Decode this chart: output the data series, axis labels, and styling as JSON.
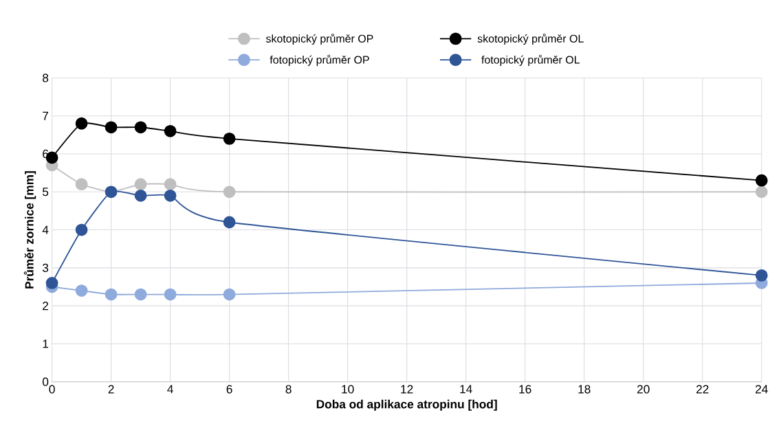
{
  "chart_data": {
    "type": "line",
    "xlabel": "Doba od aplikace atropinu [hod]",
    "ylabel": "Průměr zornice [mm]",
    "x": [
      0,
      1,
      2,
      3,
      4,
      6,
      24
    ],
    "series": [
      {
        "name": "skotopický průměr OP",
        "color": "#bfbfbf",
        "values": [
          5.7,
          5.2,
          5.0,
          5.2,
          5.2,
          5.0,
          5.0
        ]
      },
      {
        "name": "skotopický průměr OL",
        "color": "#000000",
        "values": [
          5.9,
          6.8,
          6.7,
          6.7,
          6.6,
          6.4,
          5.3
        ]
      },
      {
        "name": "fotopický průměr OP",
        "color": "#8faadc",
        "values": [
          2.5,
          2.4,
          2.3,
          2.3,
          2.3,
          2.3,
          2.6
        ]
      },
      {
        "name": "fotopický průměr OL",
        "color": "#2f5597",
        "values": [
          2.6,
          4.0,
          5.0,
          4.9,
          4.9,
          4.2,
          2.8
        ]
      }
    ],
    "xlim": [
      0,
      24
    ],
    "xticks": [
      0,
      2,
      4,
      6,
      8,
      10,
      12,
      14,
      16,
      18,
      20,
      22,
      24
    ],
    "ylim": [
      0,
      8
    ],
    "yticks": [
      0,
      1,
      2,
      3,
      4,
      5,
      6,
      7,
      8
    ],
    "grid": true,
    "legend": "top",
    "marker": "circle",
    "line_style": "solid"
  }
}
